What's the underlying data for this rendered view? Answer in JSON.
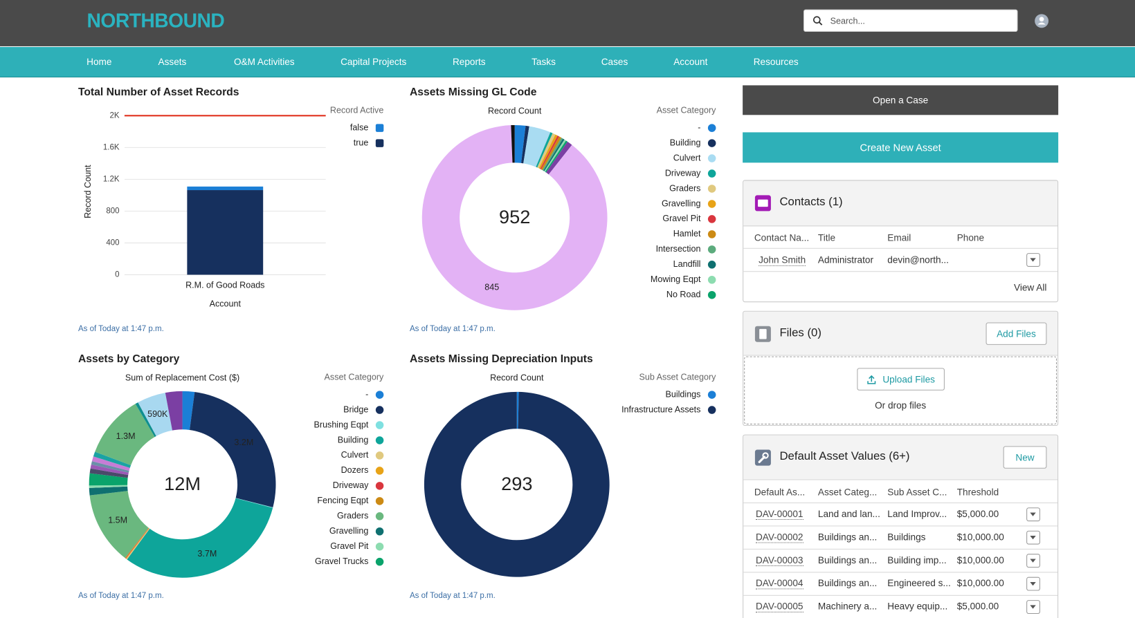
{
  "header": {
    "logo": "NORTHBOUND",
    "search_placeholder": "Search..."
  },
  "nav": [
    "Home",
    "Assets",
    "O&M Activities",
    "Capital Projects",
    "Reports",
    "Tasks",
    "Cases",
    "Account",
    "Resources"
  ],
  "actions": [
    "Open a Case",
    "Create New Asset"
  ],
  "contacts": {
    "title": "Contacts (1)",
    "columns": [
      "Contact Na...",
      "Title",
      "Email",
      "Phone"
    ],
    "rows": [
      [
        "John Smith",
        "Administrator",
        "devin@north...",
        null
      ]
    ],
    "view_all": "View All"
  },
  "files": {
    "title": "Files (0)",
    "add": "Add Files",
    "upload": "Upload Files",
    "drop": "Or drop files"
  },
  "default_values": {
    "title": "Default Asset Values (6+)",
    "new": "New",
    "columns": [
      "Default As...",
      "Asset Categ...",
      "Sub Asset C...",
      "Threshold"
    ],
    "rows": [
      [
        "DAV-00001",
        "Land and lan...",
        "Land Improv...",
        "$5,000.00"
      ],
      [
        "DAV-00002",
        "Buildings an...",
        "Buildings",
        "$10,000.00"
      ],
      [
        "DAV-00003",
        "Buildings an...",
        "Building imp...",
        "$10,000.00"
      ],
      [
        "DAV-00004",
        "Buildings an...",
        "Engineered s...",
        "$10,000.00"
      ],
      [
        "DAV-00005",
        "Machinery a...",
        "Heavy equip...",
        "$5,000.00"
      ]
    ]
  },
  "chart_data": [
    {
      "type": "bar",
      "title": "Total Number of Asset Records",
      "x_label": "Account",
      "y_label": "Record Count",
      "legend_title": "Record Active",
      "categories": [
        "R.M. of Good Roads"
      ],
      "series": [
        {
          "name": "false",
          "color": "#1b7fd6",
          "values": [
            45
          ]
        },
        {
          "name": "true",
          "color": "#16305e",
          "values": [
            1064
          ]
        }
      ],
      "stacked": true,
      "target": 2000,
      "target_color": "#e0301e",
      "ylim": [
        0,
        2000
      ],
      "yticks": [
        0,
        400,
        800,
        {
          "value": 1200,
          "label": "1.2K"
        },
        {
          "value": 1600,
          "label": "1.6K"
        },
        {
          "value": 2000,
          "label": "2K"
        }
      ],
      "grid": true,
      "footer": "As of Today at 1:47 p.m."
    },
    {
      "type": "donut",
      "title": "Assets Missing GL Code",
      "subtitle": "Record Count",
      "legend_title": "Asset Category",
      "categories": [
        "-",
        "Building",
        "Culvert",
        "Driveway",
        "Graders",
        "Gravelling",
        "Gravel Pit",
        "Hamlet",
        "Intersection",
        "Landfill",
        "Mowing Eqpt",
        "No Road",
        null,
        null,
        null
      ],
      "values": [
        18,
        6,
        36,
        4,
        5,
        4,
        3,
        4,
        3,
        3,
        3,
        3,
        9,
        845,
        6
      ],
      "colors": [
        "#1b7fd6",
        "#16305e",
        "#a9dcf2",
        "#0ea59a",
        "#e0c97f",
        "#e8a317",
        "#d9363e",
        "#cc8a14",
        "#5cab7d",
        "#0f7070",
        "#8ddcb0",
        "#0aa36b",
        "#7b3fa3",
        "#e3b2f5",
        "#111111"
      ],
      "value_labels": [
        null,
        null,
        null,
        null,
        null,
        null,
        null,
        null,
        null,
        null,
        null,
        null,
        null,
        "845",
        null
      ],
      "total": 952,
      "footer": "As of Today at 1:47 p.m."
    },
    {
      "type": "donut",
      "title": "Assets by Category",
      "subtitle": "Sum of Replacement Cost ($)",
      "legend_title": "Asset Category",
      "categories": [
        "-",
        "Bridge",
        "Brushing Eqpt",
        "Building",
        "Culvert",
        "Dozers",
        "Driveway",
        "Fencing Eqpt",
        "Graders",
        "Gravelling",
        "Gravel Pit",
        "Gravel Trucks",
        null,
        null,
        null,
        null,
        null,
        null,
        null,
        null,
        null
      ],
      "values": [
        250000,
        3200000,
        10000,
        3700000,
        20000,
        10000,
        10000,
        10000,
        1500000,
        150000,
        50000,
        250000,
        100000,
        80000,
        70000,
        100000,
        100000,
        1300000,
        60000,
        590000,
        350000
      ],
      "colors": [
        "#1b7fd6",
        "#16305e",
        "#7fe0e0",
        "#0ea59a",
        "#e0c97f",
        "#e8a317",
        "#d9363e",
        "#cc8a14",
        "#6ab87f",
        "#0f7070",
        "#8ddcb0",
        "#0aa36b",
        "#4a4a6a",
        "#9b59b6",
        "#6b8fa8",
        "#c77dd6",
        "#1aa3a3",
        "#6ab87f",
        "#0f8f8f",
        "#a8d8f0",
        "#7b3fa3"
      ],
      "value_labels": [
        null,
        "3.2M",
        null,
        "3.7M",
        null,
        null,
        null,
        null,
        "1.5M",
        null,
        null,
        null,
        null,
        null,
        null,
        null,
        null,
        "1.3M",
        null,
        "590K",
        null
      ],
      "total_label": "12M",
      "footer": "As of Today at 1:47 p.m."
    },
    {
      "type": "donut",
      "title": "Assets Missing Depreciation Inputs",
      "subtitle": "Record Count",
      "legend_title": "Sub Asset Category",
      "categories": [
        "Buildings",
        "Infrastructure Assets"
      ],
      "values": [
        1,
        292
      ],
      "colors": [
        "#1b7fd6",
        "#16305e"
      ],
      "total": 293,
      "footer": "As of Today at 1:47 p.m."
    }
  ]
}
